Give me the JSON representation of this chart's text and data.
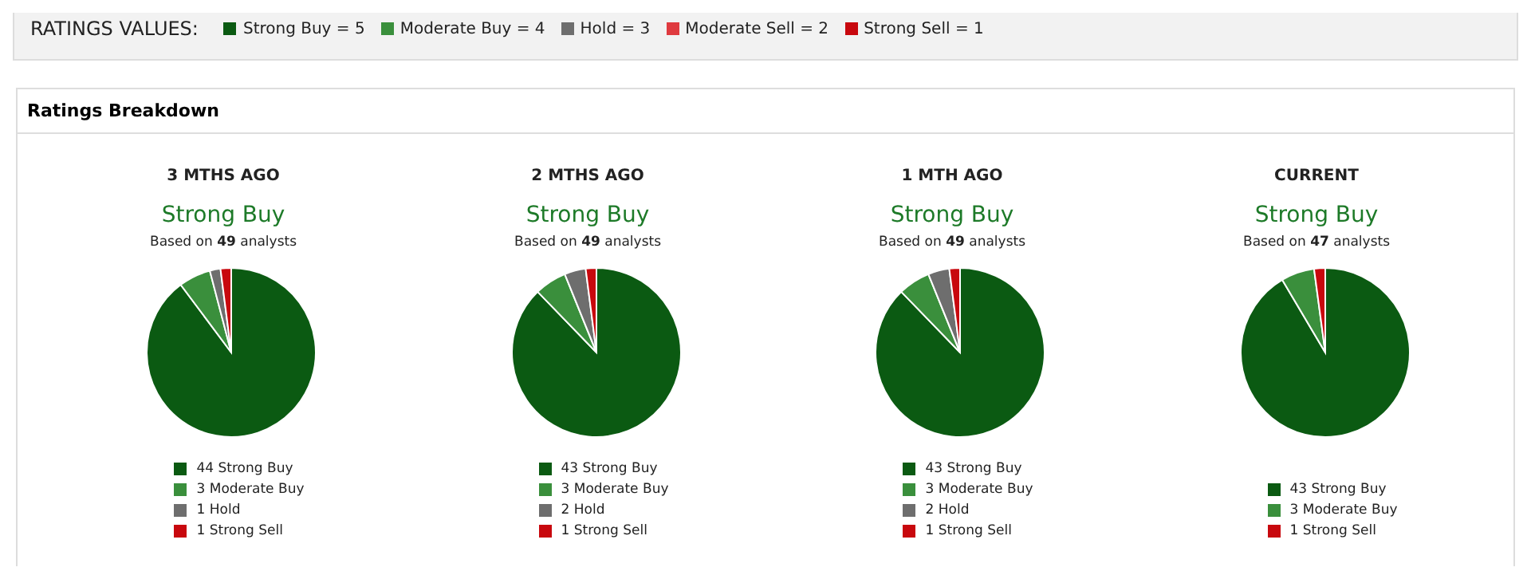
{
  "chart_data": [
    {
      "type": "other",
      "title": "RATINGS VALUES:",
      "annotations": [
        "Strong Buy = 5",
        "Moderate Buy = 4",
        "Hold = 3",
        "Moderate Sell = 2",
        "Strong Sell = 1"
      ],
      "colors": [
        "#0b5a12",
        "#3a8f3c",
        "#6e6e6e",
        "#df3a3f",
        "#c8080e"
      ]
    },
    {
      "type": "pie",
      "title": "3 MTHS AGO",
      "subtitle": "Strong Buy",
      "annotations": [
        "Based on 49 analysts"
      ],
      "legend_title": "Ratings Breakdown",
      "categories": [
        "44 Strong Buy",
        "3 Moderate Buy",
        "1 Hold",
        "1 Strong Sell"
      ],
      "values": [
        44,
        3,
        1,
        1
      ],
      "colors": [
        "#0b5a12",
        "#3a8f3c",
        "#6e6e6e",
        "#c8080e"
      ],
      "legend": "bottom"
    },
    {
      "type": "pie",
      "title": "2 MTHS AGO",
      "subtitle": "Strong Buy",
      "annotations": [
        "Based on 49 analysts"
      ],
      "categories": [
        "43 Strong Buy",
        "3 Moderate Buy",
        "2 Hold",
        "1 Strong Sell"
      ],
      "values": [
        43,
        3,
        2,
        1
      ],
      "colors": [
        "#0b5a12",
        "#3a8f3c",
        "#6e6e6e",
        "#c8080e"
      ],
      "legend": "bottom"
    },
    {
      "type": "pie",
      "title": "1 MTH AGO",
      "subtitle": "Strong Buy",
      "annotations": [
        "Based on 49 analysts"
      ],
      "categories": [
        "43 Strong Buy",
        "3 Moderate Buy",
        "2 Hold",
        "1 Strong Sell"
      ],
      "values": [
        43,
        3,
        2,
        1
      ],
      "colors": [
        "#0b5a12",
        "#3a8f3c",
        "#6e6e6e",
        "#c8080e"
      ],
      "legend": "bottom"
    },
    {
      "type": "pie",
      "title": "CURRENT",
      "subtitle": "Strong Buy",
      "annotations": [
        "Based on 47 analysts"
      ],
      "categories": [
        "43 Strong Buy",
        "3 Moderate Buy",
        "1 Strong Sell"
      ],
      "values": [
        43,
        3,
        1
      ],
      "colors": [
        "#0b5a12",
        "#3a8f3c",
        "#c8080e"
      ],
      "legend": "bottom"
    }
  ]
}
